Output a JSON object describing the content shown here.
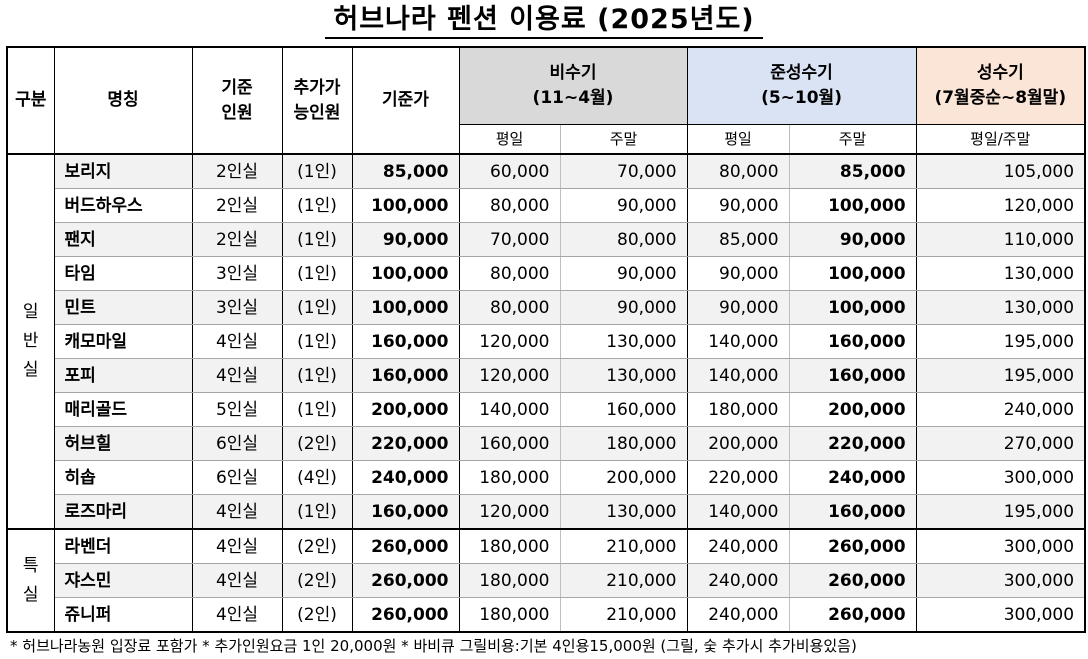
{
  "title": "허브나라 펜션 이용료 (2025년도)",
  "headers": {
    "category": "구분",
    "name": "명칭",
    "capacity_line1": "기준",
    "capacity_line2": "인원",
    "extra_line1": "추가가",
    "extra_line2": "능인원",
    "base_price": "기준가",
    "off_season_line1": "비수기",
    "off_season_line2": "(11~4월)",
    "mid_season_line1": "준성수기",
    "mid_season_line2": "(5~10월)",
    "peak_season_line1": "성수기",
    "peak_season_line2": "(7월중순~8월말)",
    "weekday": "평일",
    "weekend": "주말",
    "weekday_weekend": "평일/주말"
  },
  "categories": {
    "general": [
      "일",
      "반",
      "실"
    ],
    "special": [
      "특",
      "실"
    ]
  },
  "rows": [
    {
      "name": "보리지",
      "capacity": "2인실",
      "extra": "(1인)",
      "base": "85,000",
      "off_weekday": "60,000",
      "off_weekend": "70,000",
      "mid_weekday": "80,000",
      "mid_weekend": "85,000",
      "peak": "105,000"
    },
    {
      "name": "버드하우스",
      "capacity": "2인실",
      "extra": "(1인)",
      "base": "100,000",
      "off_weekday": "80,000",
      "off_weekend": "90,000",
      "mid_weekday": "90,000",
      "mid_weekend": "100,000",
      "peak": "120,000"
    },
    {
      "name": "팬지",
      "capacity": "2인실",
      "extra": "(1인)",
      "base": "90,000",
      "off_weekday": "70,000",
      "off_weekend": "80,000",
      "mid_weekday": "85,000",
      "mid_weekend": "90,000",
      "peak": "110,000"
    },
    {
      "name": "타임",
      "capacity": "3인실",
      "extra": "(1인)",
      "base": "100,000",
      "off_weekday": "80,000",
      "off_weekend": "90,000",
      "mid_weekday": "90,000",
      "mid_weekend": "100,000",
      "peak": "130,000"
    },
    {
      "name": "민트",
      "capacity": "3인실",
      "extra": "(1인)",
      "base": "100,000",
      "off_weekday": "80,000",
      "off_weekend": "90,000",
      "mid_weekday": "90,000",
      "mid_weekend": "100,000",
      "peak": "130,000"
    },
    {
      "name": "캐모마일",
      "capacity": "4인실",
      "extra": "(1인)",
      "base": "160,000",
      "off_weekday": "120,000",
      "off_weekend": "130,000",
      "mid_weekday": "140,000",
      "mid_weekend": "160,000",
      "peak": "195,000"
    },
    {
      "name": "포피",
      "capacity": "4인실",
      "extra": "(1인)",
      "base": "160,000",
      "off_weekday": "120,000",
      "off_weekend": "130,000",
      "mid_weekday": "140,000",
      "mid_weekend": "160,000",
      "peak": "195,000"
    },
    {
      "name": "매리골드",
      "capacity": "5인실",
      "extra": "(1인)",
      "base": "200,000",
      "off_weekday": "140,000",
      "off_weekend": "160,000",
      "mid_weekday": "180,000",
      "mid_weekend": "200,000",
      "peak": "240,000"
    },
    {
      "name": "허브힐",
      "capacity": "6인실",
      "extra": "(2인)",
      "base": "220,000",
      "off_weekday": "160,000",
      "off_weekend": "180,000",
      "mid_weekday": "200,000",
      "mid_weekend": "220,000",
      "peak": "270,000"
    },
    {
      "name": "히솝",
      "capacity": "6인실",
      "extra": "(4인)",
      "base": "240,000",
      "off_weekday": "180,000",
      "off_weekend": "200,000",
      "mid_weekday": "220,000",
      "mid_weekend": "240,000",
      "peak": "300,000"
    },
    {
      "name": "로즈마리",
      "capacity": "4인실",
      "extra": "(1인)",
      "base": "160,000",
      "off_weekday": "120,000",
      "off_weekend": "130,000",
      "mid_weekday": "140,000",
      "mid_weekend": "160,000",
      "peak": "195,000"
    },
    {
      "name": "라벤더",
      "capacity": "4인실",
      "extra": "(2인)",
      "base": "260,000",
      "off_weekday": "180,000",
      "off_weekend": "210,000",
      "mid_weekday": "240,000",
      "mid_weekend": "260,000",
      "peak": "300,000"
    },
    {
      "name": "쟈스민",
      "capacity": "4인실",
      "extra": "(2인)",
      "base": "260,000",
      "off_weekday": "180,000",
      "off_weekend": "210,000",
      "mid_weekday": "240,000",
      "mid_weekend": "260,000",
      "peak": "300,000"
    },
    {
      "name": "쥬니퍼",
      "capacity": "4인실",
      "extra": "(2인)",
      "base": "260,000",
      "off_weekday": "180,000",
      "off_weekend": "210,000",
      "mid_weekday": "240,000",
      "mid_weekend": "260,000",
      "peak": "300,000"
    }
  ],
  "footnote": "* 허브나라농원 입장료 포함가  * 추가인원요금 1인 20,000원  * 바비큐 그릴비용:기본 4인용15,000원 (그릴, 숯 추가시 추가비용있음)",
  "colors": {
    "off_season": "#d9d9d9",
    "mid_season": "#dae3f3",
    "peak_season": "#fbe5d6",
    "alt_row": "#f2f2f2"
  }
}
